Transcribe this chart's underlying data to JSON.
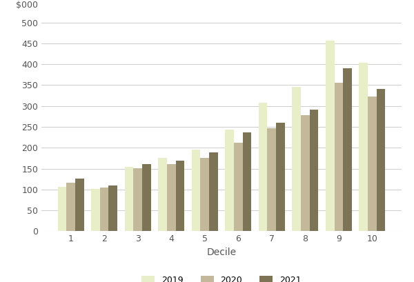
{
  "deciles": [
    1,
    2,
    3,
    4,
    5,
    6,
    7,
    8,
    9,
    10
  ],
  "values_2019": [
    107,
    102,
    155,
    175,
    195,
    244,
    308,
    346,
    457,
    403
  ],
  "values_2020": [
    116,
    105,
    151,
    161,
    176,
    212,
    247,
    278,
    355,
    322
  ],
  "values_2021": [
    126,
    110,
    161,
    169,
    189,
    237,
    260,
    291,
    391,
    341
  ],
  "bar_colors": {
    "2019": "#e8efc8",
    "2020": "#c4b89a",
    "2021": "#7d7455"
  },
  "ylabel_top": "$000",
  "xlabel": "Decile",
  "ylim": [
    0,
    520
  ],
  "yticks": [
    0,
    50,
    100,
    150,
    200,
    250,
    300,
    350,
    400,
    450,
    500
  ],
  "legend_labels": [
    "2019",
    "2020",
    "2021"
  ],
  "bar_width": 0.26,
  "background_color": "#ffffff",
  "grid_color": "#d0d0d0",
  "tick_color": "#555555",
  "label_fontsize": 10,
  "tick_fontsize": 9
}
